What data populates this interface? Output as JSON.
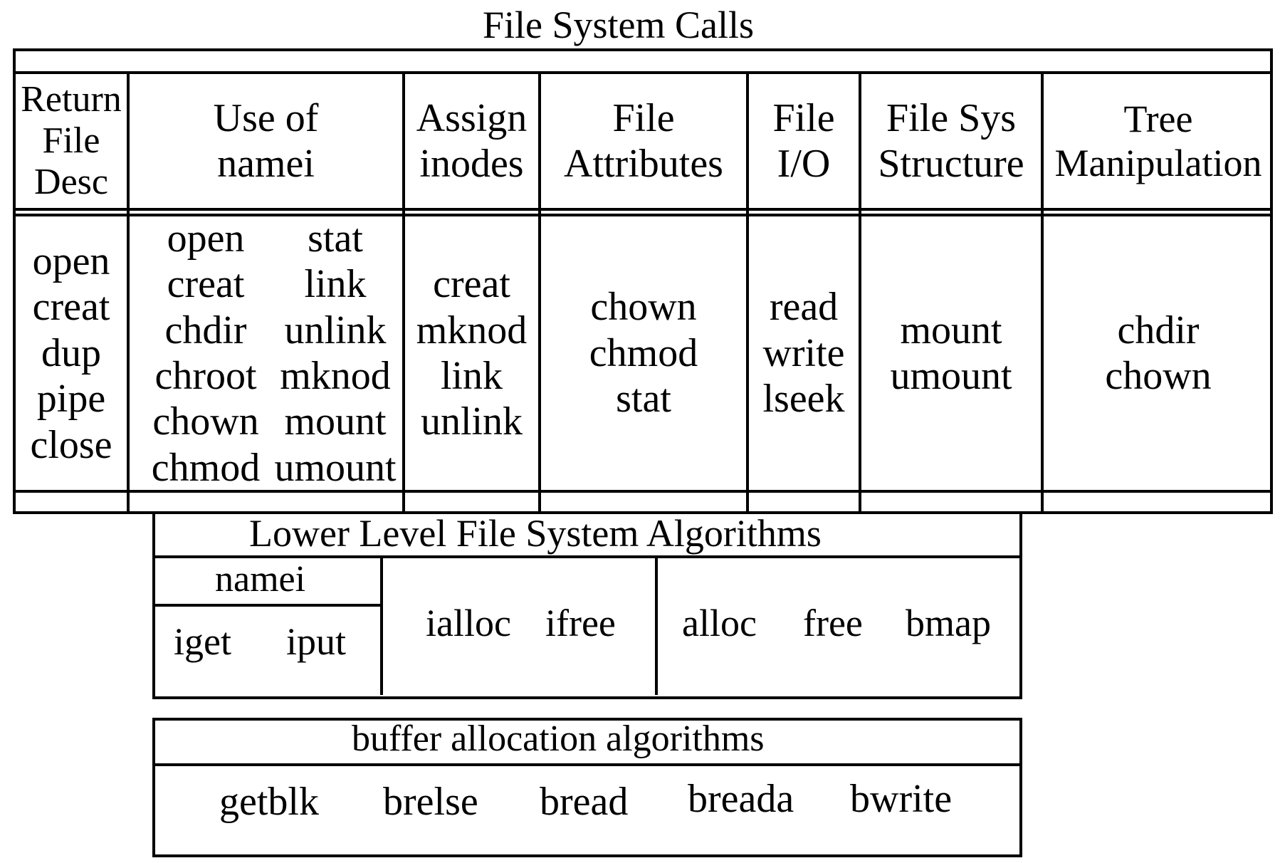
{
  "title": "File System Calls",
  "headers": [
    [
      "Return",
      "File",
      "Desc"
    ],
    [
      "Use of",
      "namei"
    ],
    [
      "Assign",
      "inodes"
    ],
    [
      "File",
      "Attributes"
    ],
    [
      "File",
      "I/O"
    ],
    [
      "File Sys",
      "Structure"
    ],
    [
      "Tree",
      "Manipulation"
    ]
  ],
  "columns": {
    "return_file_desc": [
      "open",
      "creat",
      "dup",
      "pipe",
      "close"
    ],
    "use_of_namei_left": [
      "open",
      "creat",
      "chdir",
      "chroot",
      "chown",
      "chmod"
    ],
    "use_of_namei_right": [
      "stat",
      "link",
      "unlink",
      "mknod",
      "mount",
      "umount"
    ],
    "assign_inodes": [
      "creat",
      "mknod",
      "link",
      "unlink"
    ],
    "file_attributes": [
      "chown",
      "chmod",
      "stat"
    ],
    "file_io": [
      "read",
      "write",
      "lseek"
    ],
    "file_sys_structure": [
      "mount",
      "umount"
    ],
    "tree_manipulation": [
      "chdir",
      "chown"
    ]
  },
  "lower_level": {
    "title": "Lower Level File System Algorithms",
    "namei_label": "namei",
    "namei_sub": [
      "iget",
      "iput"
    ],
    "inode_alloc": [
      "ialloc",
      "ifree"
    ],
    "block_alloc": [
      "alloc",
      "free",
      "bmap"
    ]
  },
  "buffer": {
    "title": "buffer allocation algorithms",
    "items": [
      "getblk",
      "brelse",
      "bread",
      "breada",
      "bwrite"
    ]
  }
}
